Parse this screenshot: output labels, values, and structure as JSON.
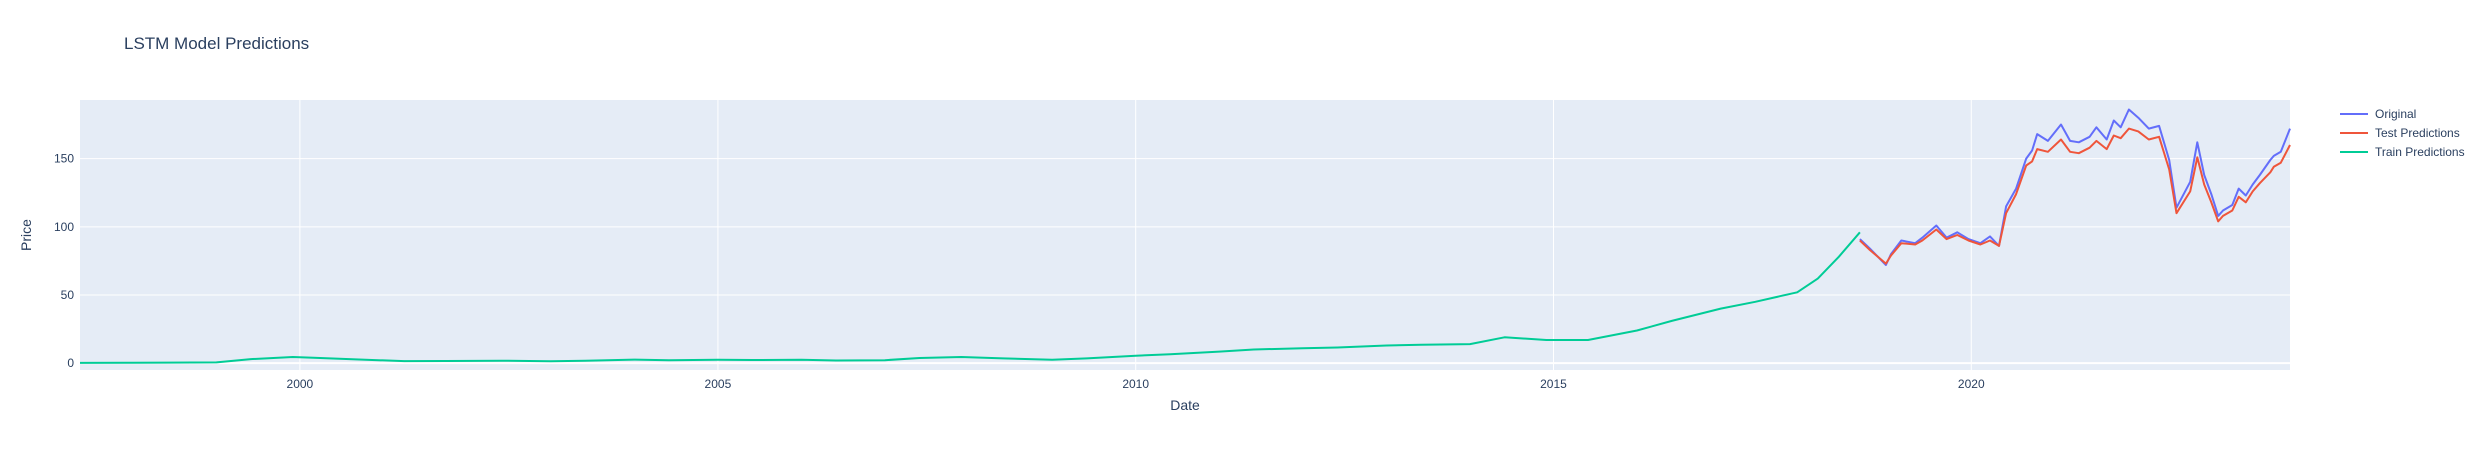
{
  "chart_data": {
    "type": "line",
    "title": "LSTM Model Predictions",
    "xlabel": "Date",
    "ylabel": "Price",
    "xlim": [
      "1997-05-15",
      "2023-10-25"
    ],
    "ylim": [
      -5,
      193
    ],
    "x_ticks": [
      {
        "value": "2000-01-01",
        "label": "2000"
      },
      {
        "value": "2005-01-01",
        "label": "2005"
      },
      {
        "value": "2010-01-01",
        "label": "2010"
      },
      {
        "value": "2015-01-01",
        "label": "2015"
      },
      {
        "value": "2020-01-01",
        "label": "2020"
      }
    ],
    "y_ticks": [
      0,
      50,
      100,
      150
    ],
    "grid": true,
    "legend_position": "top-right",
    "colors": {
      "plot_background": "#e5ecf6",
      "grid": "#ffffff",
      "text": "#2a3f5f"
    },
    "series": [
      {
        "name": "Original",
        "color": "#636efa",
        "x": [
          "2018-09-01",
          "2018-10-15",
          "2018-12-24",
          "2019-01-15",
          "2019-03-01",
          "2019-05-01",
          "2019-06-01",
          "2019-08-01",
          "2019-09-15",
          "2019-11-01",
          "2019-12-20",
          "2020-02-10",
          "2020-03-23",
          "2020-05-01",
          "2020-06-01",
          "2020-07-15",
          "2020-08-28",
          "2020-09-23",
          "2020-10-15",
          "2020-12-01",
          "2021-01-27",
          "2021-03-08",
          "2021-04-15",
          "2021-06-01",
          "2021-07-01",
          "2021-08-15",
          "2021-09-15",
          "2021-10-15",
          "2021-11-20",
          "2021-12-31",
          "2022-02-15",
          "2022-04-01",
          "2022-05-15",
          "2022-06-16",
          "2022-08-15",
          "2022-09-15",
          "2022-10-15",
          "2022-11-15",
          "2022-12-15",
          "2023-01-05",
          "2023-02-15",
          "2023-03-15",
          "2023-04-15",
          "2023-05-15",
          "2023-06-15",
          "2023-07-31",
          "2023-08-15",
          "2023-09-15",
          "2023-10-25"
        ],
        "y": [
          91,
          84,
          72,
          80,
          90,
          88,
          92,
          101,
          92,
          96,
          91,
          88,
          93,
          86,
          115,
          128,
          150,
          156,
          168,
          163,
          175,
          163,
          162,
          166,
          173,
          164,
          178,
          173,
          186,
          180,
          172,
          174,
          149,
          114,
          133,
          162,
          138,
          124,
          108,
          112,
          116,
          128,
          123,
          131,
          138,
          149,
          152,
          155,
          172
        ]
      },
      {
        "name": "Test Predictions",
        "color": "#ef553b",
        "x": [
          "2018-09-01",
          "2018-10-15",
          "2018-12-24",
          "2019-01-15",
          "2019-03-01",
          "2019-05-01",
          "2019-06-01",
          "2019-08-01",
          "2019-09-15",
          "2019-11-01",
          "2019-12-20",
          "2020-02-10",
          "2020-03-23",
          "2020-05-01",
          "2020-06-01",
          "2020-07-15",
          "2020-08-28",
          "2020-09-23",
          "2020-10-15",
          "2020-12-01",
          "2021-01-27",
          "2021-03-08",
          "2021-04-15",
          "2021-06-01",
          "2021-07-01",
          "2021-08-15",
          "2021-09-15",
          "2021-10-15",
          "2021-11-20",
          "2021-12-31",
          "2022-02-15",
          "2022-04-01",
          "2022-05-15",
          "2022-06-16",
          "2022-08-15",
          "2022-09-15",
          "2022-10-15",
          "2022-11-15",
          "2022-12-15",
          "2023-01-05",
          "2023-02-15",
          "2023-03-15",
          "2023-04-15",
          "2023-05-15",
          "2023-06-15",
          "2023-07-31",
          "2023-08-15",
          "2023-09-15",
          "2023-10-25"
        ],
        "y": [
          90,
          83,
          73,
          79,
          88,
          87,
          90,
          98,
          91,
          94,
          90,
          87,
          90,
          86,
          110,
          124,
          145,
          148,
          157,
          155,
          164,
          155,
          154,
          158,
          163,
          157,
          167,
          165,
          172,
          170,
          164,
          166,
          142,
          110,
          126,
          151,
          131,
          118,
          104,
          108,
          112,
          122,
          118,
          126,
          132,
          140,
          144,
          147,
          160
        ]
      },
      {
        "name": "Train Predictions",
        "color": "#00cc96",
        "x": [
          "1997-05-15",
          "1998-01-01",
          "1998-06-01",
          "1999-01-01",
          "1999-06-01",
          "1999-12-01",
          "2000-03-01",
          "2000-09-01",
          "2001-04-01",
          "2001-10-01",
          "2002-06-01",
          "2003-01-01",
          "2003-06-01",
          "2004-01-01",
          "2004-06-01",
          "2005-01-01",
          "2005-06-01",
          "2006-01-01",
          "2006-06-01",
          "2007-01-01",
          "2007-06-01",
          "2007-12-01",
          "2008-06-01",
          "2009-01-01",
          "2009-06-01",
          "2010-01-01",
          "2010-06-01",
          "2011-01-01",
          "2011-06-01",
          "2012-01-01",
          "2012-06-01",
          "2013-01-01",
          "2013-06-01",
          "2014-01-01",
          "2014-06-01",
          "2014-12-01",
          "2015-06-01",
          "2016-01-01",
          "2016-06-01",
          "2017-01-01",
          "2017-06-01",
          "2017-12-01",
          "2018-03-01",
          "2018-06-01",
          "2018-09-01"
        ],
        "y": [
          0.2,
          0.3,
          0.4,
          0.6,
          3.0,
          4.5,
          4.0,
          2.8,
          1.5,
          1.6,
          1.8,
          1.4,
          1.8,
          2.6,
          2.2,
          2.5,
          2.3,
          2.5,
          2.0,
          2.2,
          3.8,
          4.5,
          3.5,
          2.5,
          3.5,
          5.5,
          6.5,
          8.5,
          10.0,
          11.0,
          11.5,
          13.0,
          13.5,
          14.0,
          19.0,
          17.0,
          17.0,
          24.0,
          31.0,
          40.0,
          45.0,
          52.0,
          62.0,
          78.0,
          96.0
        ]
      }
    ]
  }
}
